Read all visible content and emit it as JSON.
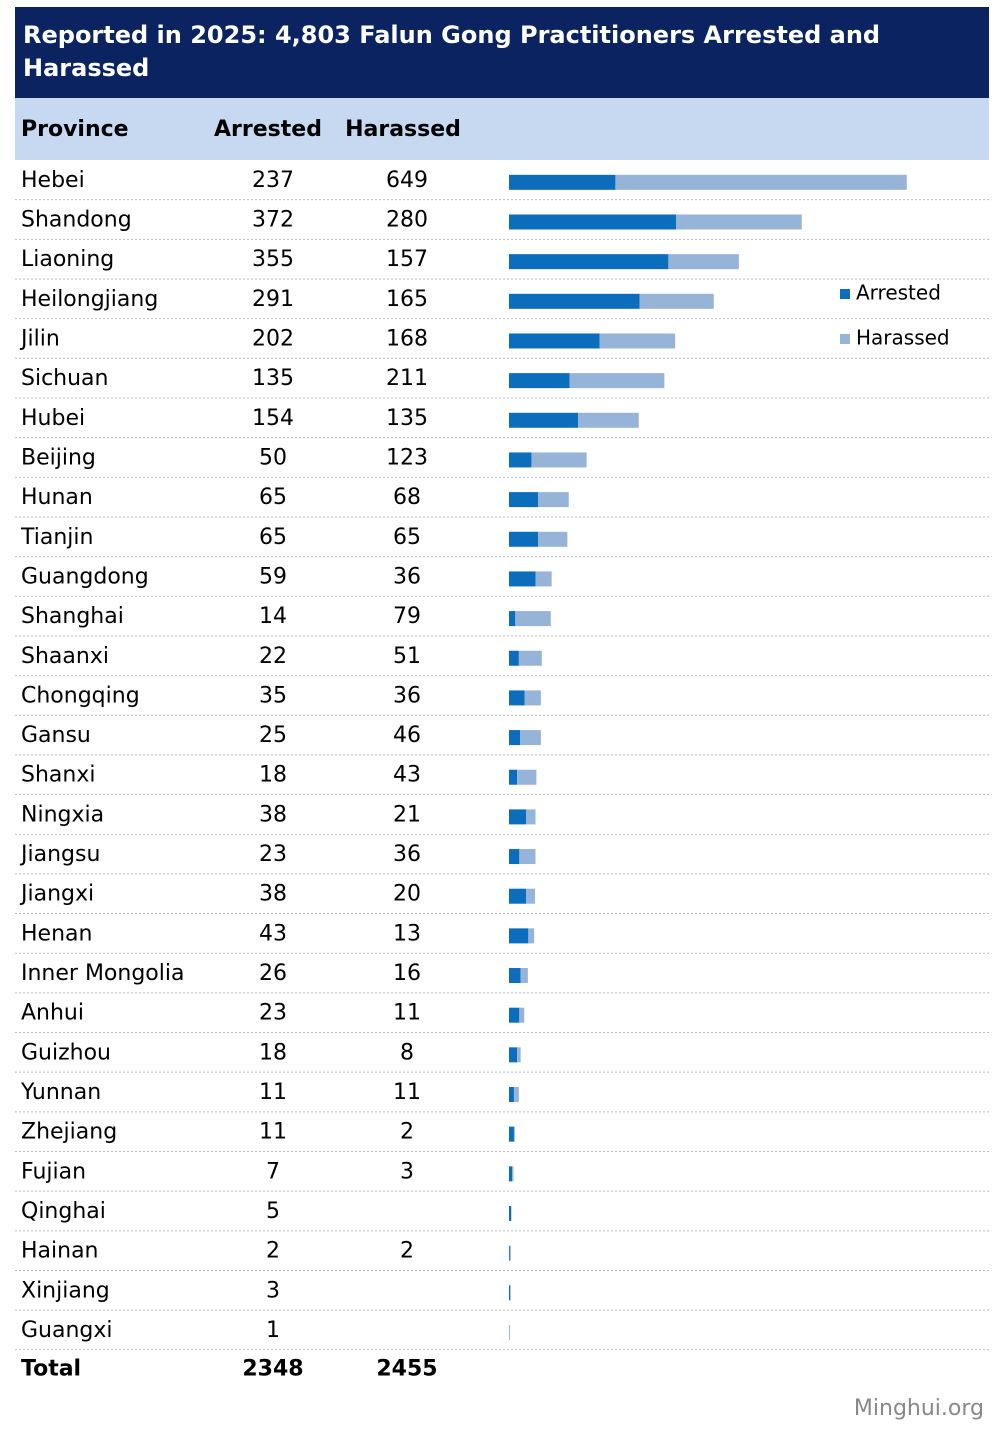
{
  "chart_data": {
    "type": "bar",
    "stacked": true,
    "orientation": "horizontal",
    "title": "Reported in 2025: 4,803 Falun Gong Practitioners Arrested and Harassed",
    "category_label": "Province",
    "categories": [
      "Hebei",
      "Shandong",
      "Liaoning",
      "Heilongjiang",
      "Jilin",
      "Sichuan",
      "Hubei",
      "Beijing",
      "Hunan",
      "Tianjin",
      "Guangdong",
      "Shanghai",
      "Shaanxi",
      "Chongqing",
      "Gansu",
      "Shanxi",
      "Ningxia",
      "Jiangsu",
      "Jiangxi",
      "Henan",
      "Inner Mongolia",
      "Anhui",
      "Guizhou",
      "Yunnan",
      "Zhejiang",
      "Fujian",
      "Qinghai",
      "Hainan",
      "Xinjiang",
      "Guangxi"
    ],
    "series": [
      {
        "name": "Arrested",
        "color": "#0b6dbb",
        "values": [
          237,
          372,
          355,
          291,
          202,
          135,
          154,
          50,
          65,
          65,
          59,
          14,
          22,
          35,
          25,
          18,
          38,
          23,
          38,
          43,
          26,
          23,
          18,
          11,
          11,
          7,
          5,
          2,
          3,
          1
        ]
      },
      {
        "name": "Harassed",
        "color": "#96b3d8",
        "values": [
          649,
          280,
          157,
          165,
          168,
          211,
          135,
          123,
          68,
          65,
          36,
          79,
          51,
          36,
          46,
          43,
          21,
          36,
          20,
          13,
          16,
          11,
          8,
          11,
          2,
          3,
          null,
          2,
          null,
          null
        ]
      }
    ],
    "total_label": "Total",
    "totals": [
      2348,
      2455
    ],
    "legend": "right",
    "source": "Minghui.org"
  }
}
